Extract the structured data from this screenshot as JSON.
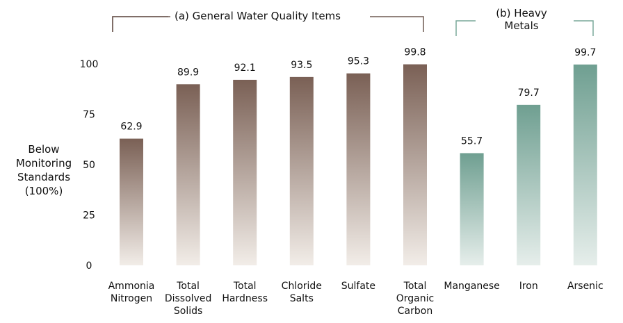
{
  "chart_data": {
    "type": "bar",
    "title": "",
    "ylabel": [
      "Below",
      "Monitoring",
      "Standards",
      "(100%)"
    ],
    "ylim": [
      0,
      100
    ],
    "yticks": [
      0,
      25,
      50,
      75,
      100
    ],
    "grid": false,
    "groups": [
      {
        "label": "(a) General Water Quality Items",
        "color_top": "#7a6055",
        "color_bottom": "#f2ede8"
      },
      {
        "label_lines": [
          "(b) Heavy",
          "Metals"
        ],
        "color_top": "#6f9f91",
        "color_bottom": "#e6eeeb"
      }
    ],
    "categories": [
      {
        "label": [
          "Ammonia",
          "Nitrogen"
        ],
        "value": 62.9,
        "group": 0
      },
      {
        "label": [
          "Total",
          "Dissolved",
          "Solids"
        ],
        "value": 89.9,
        "group": 0
      },
      {
        "label": [
          "Total",
          "Hardness"
        ],
        "value": 92.1,
        "group": 0
      },
      {
        "label": [
          "Chloride",
          "Salts"
        ],
        "value": 93.5,
        "group": 0
      },
      {
        "label": [
          "Sulfate"
        ],
        "value": 95.3,
        "group": 0
      },
      {
        "label": [
          "Total",
          "Organic",
          "Carbon"
        ],
        "value": 99.8,
        "group": 0
      },
      {
        "label": [
          "Manganese"
        ],
        "value": 55.7,
        "group": 1
      },
      {
        "label": [
          "Iron"
        ],
        "value": 79.7,
        "group": 1
      },
      {
        "label": [
          "Arsenic"
        ],
        "value": 99.7,
        "group": 1
      }
    ]
  }
}
